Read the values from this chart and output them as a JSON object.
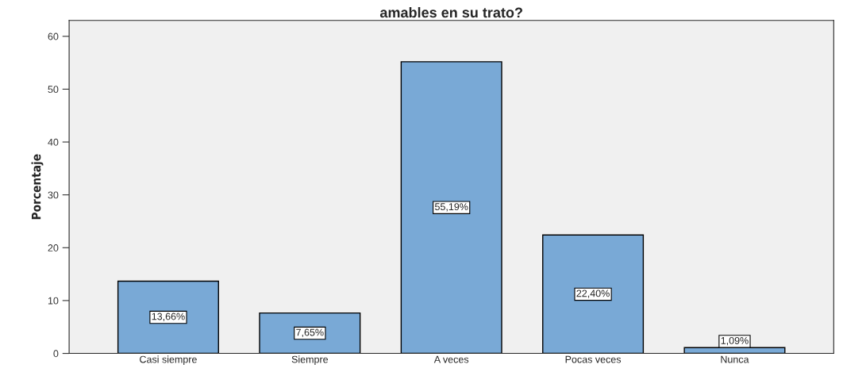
{
  "chart_data": {
    "type": "bar",
    "title": "amables en su trato?",
    "ylabel": "Porcentaje",
    "categories": [
      "Casi siempre",
      "Siempre",
      "A veces",
      "Pocas veces",
      "Nunca"
    ],
    "values": [
      13.66,
      7.65,
      55.19,
      22.4,
      1.09
    ],
    "value_labels": [
      "13,66%",
      "7,65%",
      "55,19%",
      "22,40%",
      "1,09%"
    ],
    "color": "#79a9d6",
    "ylim": [
      0,
      63
    ],
    "yticks": [
      0,
      10,
      20,
      30,
      40,
      50,
      60
    ],
    "grid": false
  }
}
